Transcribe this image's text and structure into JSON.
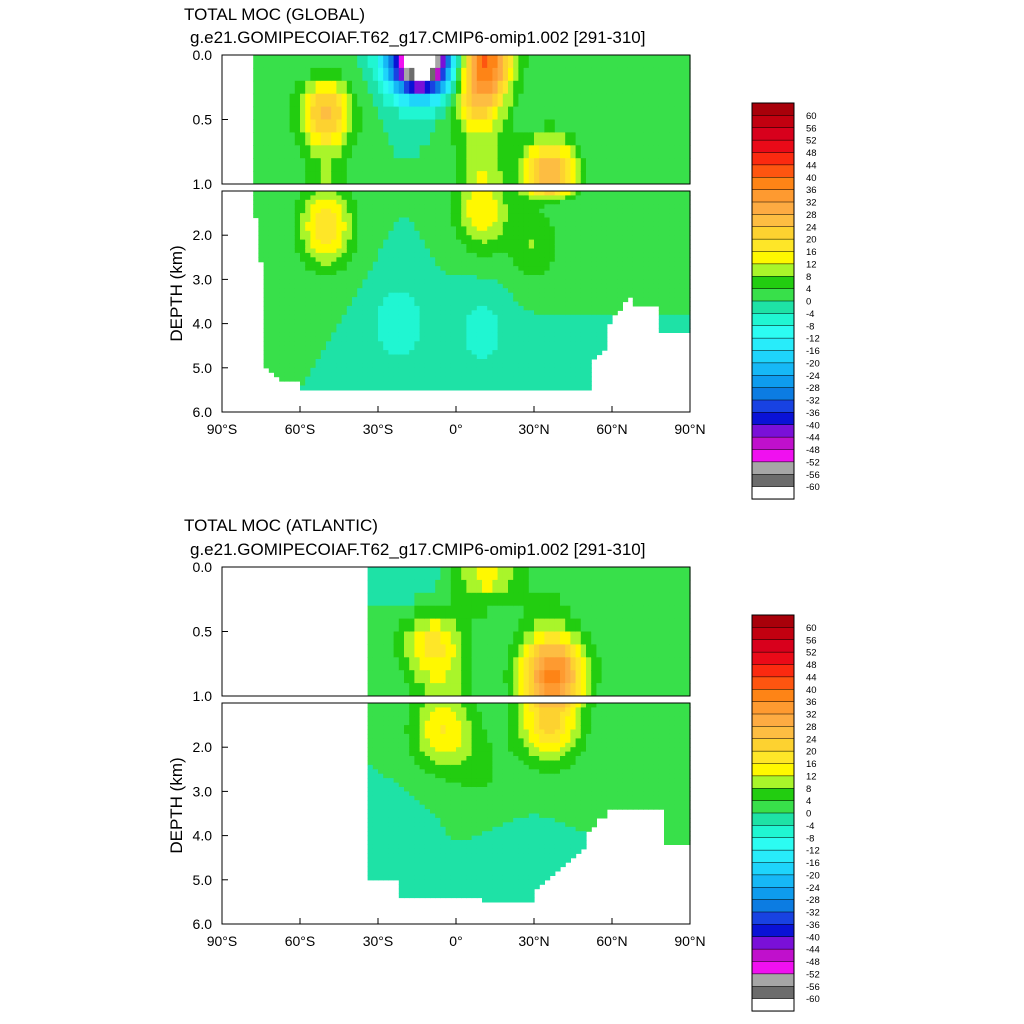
{
  "chart_data": [
    {
      "type": "heatmap",
      "title": "TOTAL MOC (GLOBAL)",
      "subtitle": "g.e21.GOMIPECOIAF.T62_g17.CMIP6-omip1.002 [291-310]",
      "ylabel": "DEPTH (km)",
      "xlabel": "",
      "xlim": [
        -90,
        90
      ],
      "ylim_upper": [
        0.0,
        1.0
      ],
      "ylim_lower": [
        1.0,
        6.0
      ],
      "x_ticks": [
        "90°S",
        "60°S",
        "30°S",
        "0°",
        "30°N",
        "60°N",
        "90°N"
      ],
      "y_ticks_upper": [
        "0.0",
        "0.5",
        "1.0"
      ],
      "y_ticks_lower": [
        "2.0",
        "3.0",
        "4.0",
        "5.0",
        "6.0"
      ],
      "x_extent": [
        -78,
        90
      ],
      "features": [
        {
          "x": -18,
          "y": 0.05,
          "value": -40
        },
        {
          "x": -10,
          "y": 0.06,
          "value": -48
        },
        {
          "x": -50,
          "y": 0.45,
          "value": 24
        },
        {
          "x": -50,
          "y": 1.8,
          "value": 20
        },
        {
          "x": 12,
          "y": 0.05,
          "value": 36
        },
        {
          "x": 8,
          "y": 0.35,
          "value": 16
        },
        {
          "x": 10,
          "y": 1.4,
          "value": 16
        },
        {
          "x": 36,
          "y": 0.9,
          "value": 28
        },
        {
          "x": 30,
          "y": 2.2,
          "value": 8
        },
        {
          "x": -22,
          "y": 4.0,
          "value": -8
        },
        {
          "x": 10,
          "y": 4.2,
          "value": -6
        },
        {
          "x": 30,
          "y": 5.0,
          "value": -2
        },
        {
          "x": 75,
          "y": 0.3,
          "value": 2
        }
      ]
    },
    {
      "type": "heatmap",
      "title": "TOTAL MOC (ATLANTIC)",
      "subtitle": "g.e21.GOMIPECOIAF.T62_g17.CMIP6-omip1.002 [291-310]",
      "ylabel": "DEPTH (km)",
      "xlabel": "",
      "xlim": [
        -90,
        90
      ],
      "ylim_upper": [
        0.0,
        1.0
      ],
      "ylim_lower": [
        1.0,
        6.0
      ],
      "x_ticks": [
        "90°S",
        "60°S",
        "30°S",
        "0°",
        "30°N",
        "60°N",
        "90°N"
      ],
      "y_ticks_upper": [
        "0.0",
        "0.5",
        "1.0"
      ],
      "y_ticks_lower": [
        "2.0",
        "3.0",
        "4.0",
        "5.0",
        "6.0"
      ],
      "x_extent": [
        -33,
        90
      ],
      "features": [
        {
          "x": -15,
          "y": 0.05,
          "value": -4
        },
        {
          "x": 12,
          "y": 0.05,
          "value": 14
        },
        {
          "x": -10,
          "y": 0.6,
          "value": 14
        },
        {
          "x": 38,
          "y": 0.8,
          "value": 24
        },
        {
          "x": 36,
          "y": 1.4,
          "value": 22
        },
        {
          "x": -5,
          "y": 1.6,
          "value": 16
        },
        {
          "x": 10,
          "y": 2.6,
          "value": 4
        },
        {
          "x": -25,
          "y": 4.3,
          "value": -4
        },
        {
          "x": 20,
          "y": 4.8,
          "value": -2
        },
        {
          "x": 75,
          "y": 0.3,
          "value": 2
        }
      ]
    }
  ],
  "colorbar": {
    "labels": [
      "60",
      "56",
      "52",
      "48",
      "44",
      "40",
      "36",
      "32",
      "28",
      "24",
      "20",
      "16",
      "12",
      "8",
      "4",
      "0",
      "-4",
      "-8",
      "-12",
      "-16",
      "-20",
      "-24",
      "-28",
      "-32",
      "-36",
      "-40",
      "-44",
      "-48",
      "-52",
      "-56",
      "-60"
    ],
    "colors": [
      "#a8000a",
      "#c20010",
      "#d8001c",
      "#ea0a18",
      "#fb2a10",
      "#fe5510",
      "#fe8416",
      "#fe9a30",
      "#fdab42",
      "#fdbd42",
      "#fdd230",
      "#fee628",
      "#fff800",
      "#a9f52a",
      "#22cd10",
      "#38e04a",
      "#1ee2a6",
      "#20f6d2",
      "#2cfcf2",
      "#28ecfa",
      "#1ed4fb",
      "#16b8f6",
      "#0e9cee",
      "#0c7ce2",
      "#1842e2",
      "#0a12d6",
      "#7a10d8",
      "#c010cc",
      "#f010f0",
      "#a6a6a6",
      "#6c6c6c",
      "#ffffff"
    ]
  }
}
